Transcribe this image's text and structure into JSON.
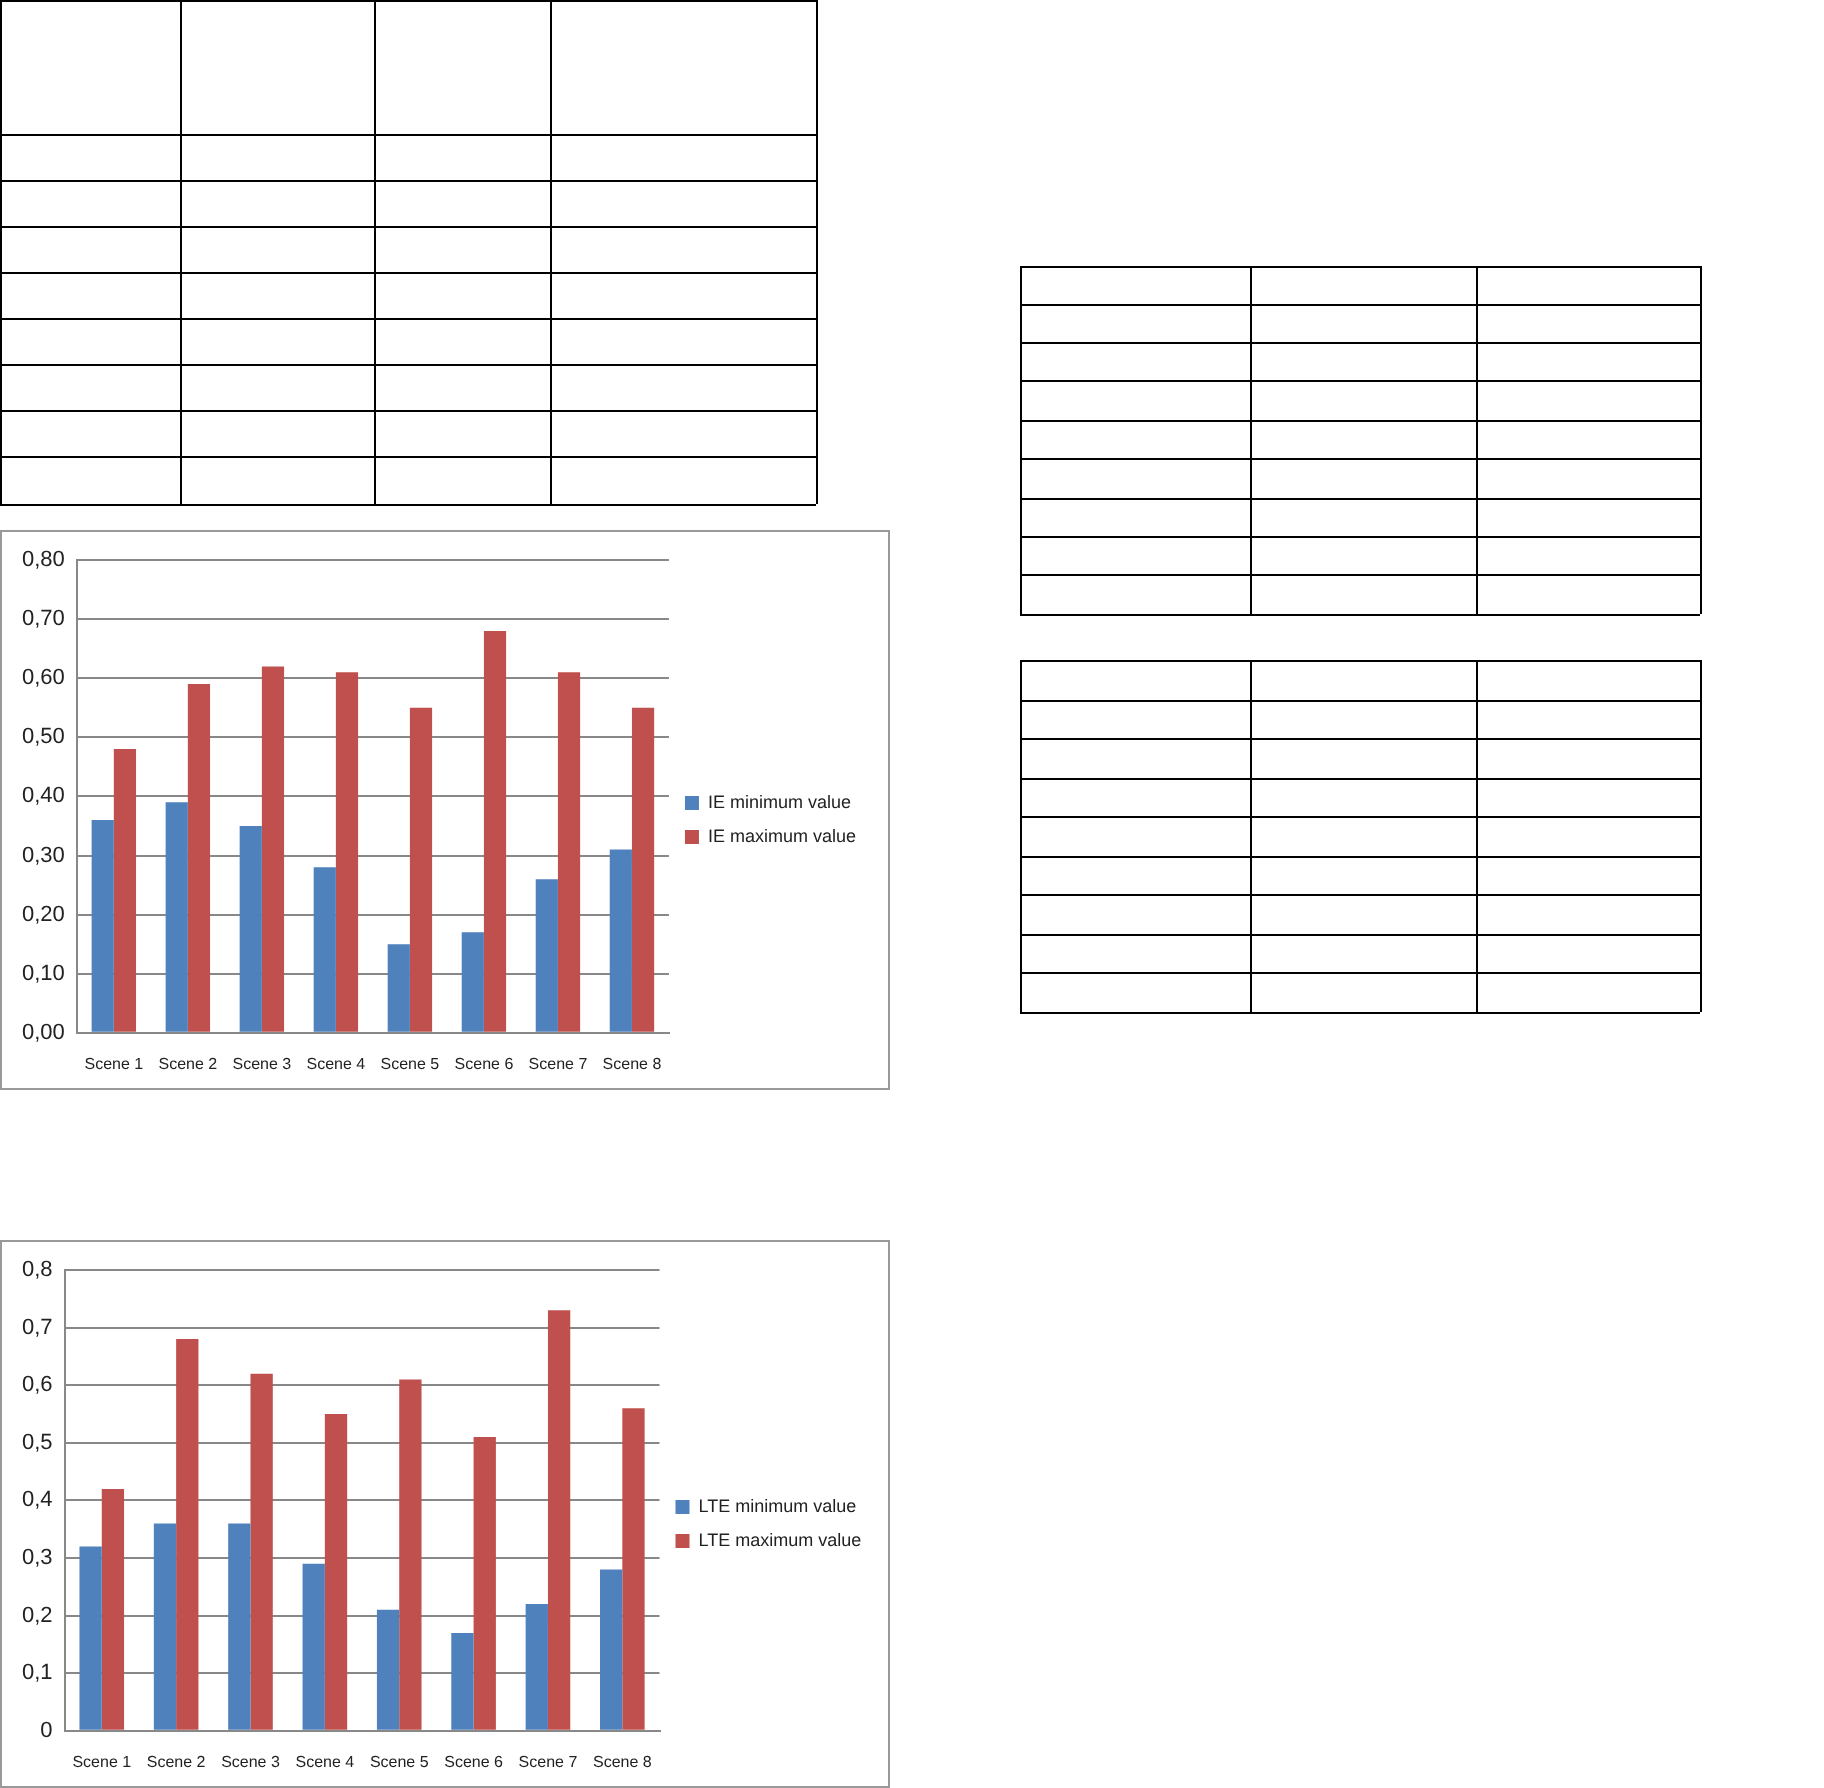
{
  "chart_data": [
    {
      "type": "bar",
      "categories": [
        "Scene 1",
        "Scene 2",
        "Scene 3",
        "Scene 4",
        "Scene 5",
        "Scene 6",
        "Scene 7",
        "Scene 8"
      ],
      "series": [
        {
          "name": "IE minimum value",
          "color": "#4f81bd",
          "values": [
            0.36,
            0.39,
            0.35,
            0.28,
            0.15,
            0.17,
            0.26,
            0.31
          ]
        },
        {
          "name": "IE maximum value",
          "color": "#c0504d",
          "values": [
            0.48,
            0.59,
            0.62,
            0.61,
            0.55,
            0.68,
            0.61,
            0.55
          ]
        }
      ],
      "ylim": [
        0,
        0.8
      ],
      "yticks": [
        {
          "value": 0,
          "label": "0,00"
        },
        {
          "value": 0.1,
          "label": "0,10"
        },
        {
          "value": 0.2,
          "label": "0,20"
        },
        {
          "value": 0.3,
          "label": "0,30"
        },
        {
          "value": 0.4,
          "label": "0,40"
        },
        {
          "value": 0.5,
          "label": "0,50"
        },
        {
          "value": 0.6,
          "label": "0,60"
        },
        {
          "value": 0.7,
          "label": "0,70"
        },
        {
          "value": 0.8,
          "label": "0,80"
        }
      ],
      "grid": "y",
      "legend": "right"
    },
    {
      "type": "bar",
      "categories": [
        "Scene 1",
        "Scene 2",
        "Scene 3",
        "Scene 4",
        "Scene 5",
        "Scene 6",
        "Scene 7",
        "Scene 8"
      ],
      "series": [
        {
          "name": "LTE minimum value",
          "color": "#4f81bd",
          "values": [
            0.32,
            0.36,
            0.36,
            0.29,
            0.21,
            0.17,
            0.22,
            0.28
          ]
        },
        {
          "name": "LTE maximum value",
          "color": "#c0504d",
          "values": [
            0.42,
            0.68,
            0.62,
            0.55,
            0.61,
            0.51,
            0.73,
            0.56
          ]
        }
      ],
      "ylim": [
        0,
        0.8
      ],
      "yticks": [
        0,
        {
          "value": 0.1,
          "label": "0,1"
        },
        {
          "value": 0.2,
          "label": "0,2"
        },
        {
          "value": 0.3,
          "label": "0,3"
        },
        {
          "value": 0.4,
          "label": "0,4"
        },
        {
          "value": 0.5,
          "label": "0,5"
        },
        {
          "value": 0.6,
          "label": "0,6"
        },
        {
          "value": 0.7,
          "label": "0,7"
        },
        {
          "value": 0.8,
          "label": "0,8"
        }
      ],
      "grid": "y",
      "legend": "right"
    }
  ]
}
